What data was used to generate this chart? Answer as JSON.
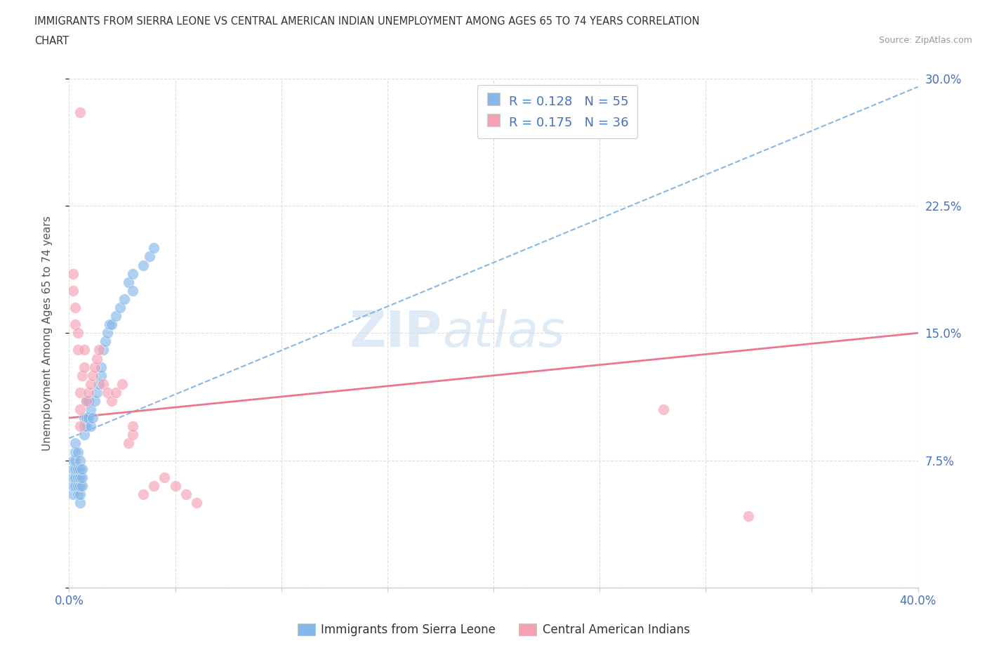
{
  "title_line1": "IMMIGRANTS FROM SIERRA LEONE VS CENTRAL AMERICAN INDIAN UNEMPLOYMENT AMONG AGES 65 TO 74 YEARS CORRELATION",
  "title_line2": "CHART",
  "source": "Source: ZipAtlas.com",
  "ylabel": "Unemployment Among Ages 65 to 74 years",
  "xmin": 0.0,
  "xmax": 0.4,
  "ymin": 0.0,
  "ymax": 0.3,
  "xticks": [
    0.0,
    0.05,
    0.1,
    0.15,
    0.2,
    0.25,
    0.3,
    0.35,
    0.4
  ],
  "xticklabels": [
    "0.0%",
    "",
    "",
    "",
    "",
    "",
    "",
    "",
    "40.0%"
  ],
  "yticks": [
    0.0,
    0.075,
    0.15,
    0.225,
    0.3
  ],
  "yticklabels": [
    "",
    "7.5%",
    "15.0%",
    "22.5%",
    "30.0%"
  ],
  "blue_color": "#85b8e8",
  "pink_color": "#f5a0b5",
  "blue_line_color": "#85b8e8",
  "pink_line_color": "#e87a8f",
  "watermark_zip": "ZIP",
  "watermark_atlas": "atlas",
  "legend_R1": "R = 0.128",
  "legend_N1": "N = 55",
  "legend_R2": "R = 0.175",
  "legend_N2": "N = 36",
  "grid_color": "#dddddd",
  "blue_scatter_x": [
    0.002,
    0.002,
    0.002,
    0.002,
    0.002,
    0.003,
    0.003,
    0.003,
    0.003,
    0.003,
    0.003,
    0.004,
    0.004,
    0.004,
    0.004,
    0.004,
    0.005,
    0.005,
    0.005,
    0.005,
    0.005,
    0.005,
    0.006,
    0.006,
    0.006,
    0.007,
    0.007,
    0.007,
    0.008,
    0.008,
    0.008,
    0.009,
    0.009,
    0.01,
    0.01,
    0.011,
    0.012,
    0.013,
    0.014,
    0.015,
    0.015,
    0.016,
    0.017,
    0.018,
    0.019,
    0.02,
    0.022,
    0.024,
    0.026,
    0.028,
    0.03,
    0.03,
    0.035,
    0.038,
    0.04
  ],
  "blue_scatter_y": [
    0.055,
    0.06,
    0.065,
    0.07,
    0.075,
    0.06,
    0.065,
    0.07,
    0.075,
    0.08,
    0.085,
    0.055,
    0.06,
    0.065,
    0.07,
    0.08,
    0.05,
    0.055,
    0.06,
    0.065,
    0.07,
    0.075,
    0.06,
    0.065,
    0.07,
    0.09,
    0.095,
    0.1,
    0.095,
    0.1,
    0.11,
    0.1,
    0.11,
    0.095,
    0.105,
    0.1,
    0.11,
    0.115,
    0.12,
    0.125,
    0.13,
    0.14,
    0.145,
    0.15,
    0.155,
    0.155,
    0.16,
    0.165,
    0.17,
    0.18,
    0.175,
    0.185,
    0.19,
    0.195,
    0.2
  ],
  "pink_scatter_x": [
    0.002,
    0.002,
    0.003,
    0.003,
    0.004,
    0.004,
    0.005,
    0.005,
    0.005,
    0.006,
    0.007,
    0.007,
    0.008,
    0.009,
    0.01,
    0.011,
    0.012,
    0.013,
    0.014,
    0.016,
    0.018,
    0.02,
    0.022,
    0.025,
    0.028,
    0.03,
    0.03,
    0.035,
    0.04,
    0.045,
    0.05,
    0.055,
    0.06,
    0.28,
    0.32,
    0.005
  ],
  "pink_scatter_y": [
    0.175,
    0.185,
    0.155,
    0.165,
    0.14,
    0.15,
    0.095,
    0.105,
    0.115,
    0.125,
    0.13,
    0.14,
    0.11,
    0.115,
    0.12,
    0.125,
    0.13,
    0.135,
    0.14,
    0.12,
    0.115,
    0.11,
    0.115,
    0.12,
    0.085,
    0.09,
    0.095,
    0.055,
    0.06,
    0.065,
    0.06,
    0.055,
    0.05,
    0.105,
    0.042,
    0.28
  ],
  "blue_trend_x": [
    0.0,
    0.4
  ],
  "blue_trend_y": [
    0.088,
    0.295
  ],
  "pink_trend_x": [
    0.0,
    0.4
  ],
  "pink_trend_y": [
    0.1,
    0.15
  ]
}
